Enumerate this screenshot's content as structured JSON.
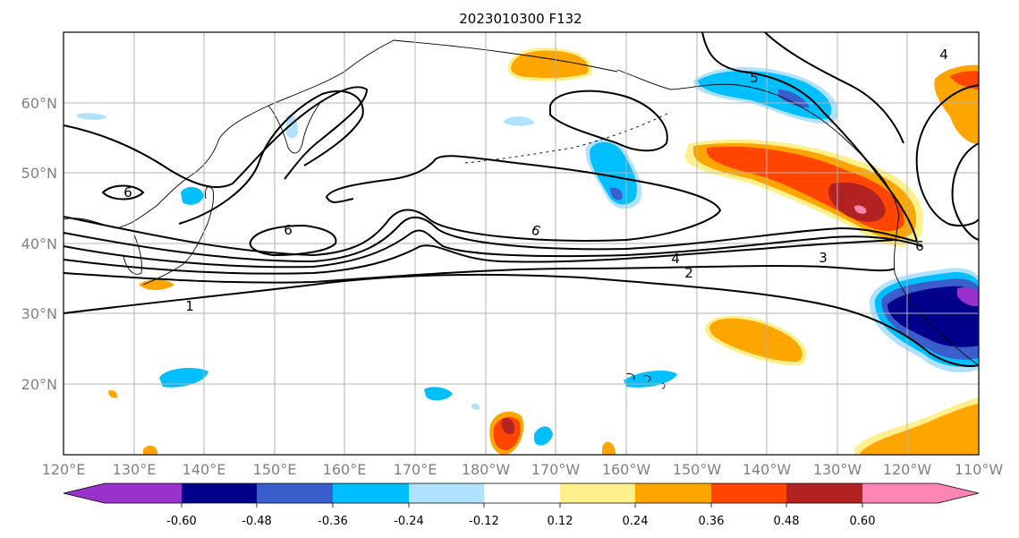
{
  "title": "2023010300 F132",
  "map": {
    "lon_ticks": [
      "120°E",
      "130°E",
      "140°E",
      "150°E",
      "160°E",
      "170°E",
      "180°W",
      "170°W",
      "160°W",
      "150°W",
      "140°W",
      "130°W",
      "120°W",
      "110°W"
    ],
    "lat_ticks": [
      "60°N",
      "50°N",
      "40°N",
      "30°N",
      "20°N"
    ],
    "contour_labels": [
      "6",
      "6",
      "6",
      "5",
      "4",
      "4",
      "3",
      "2",
      "1",
      "6"
    ]
  },
  "colorbar": {
    "colors": [
      "#9932cc",
      "#00008b",
      "#3a5fcd",
      "#00bfff",
      "#b0e2ff",
      "#ffffff",
      "#fff08c",
      "#ffa500",
      "#ff4500",
      "#b22222",
      "#ff86b4"
    ],
    "tick_labels": [
      "-0.60",
      "-0.48",
      "-0.36",
      "-0.24",
      "-0.12",
      "0.12",
      "0.24",
      "0.36",
      "0.48",
      "0.60"
    ]
  },
  "chart_data": {
    "type": "heatmap",
    "title": "2023010300 F132",
    "levels": [
      -0.6,
      -0.48,
      -0.36,
      -0.24,
      -0.12,
      0.12,
      0.24,
      0.36,
      0.48,
      0.6
    ],
    "contour_values": [
      1,
      2,
      3,
      4,
      5,
      6
    ]
  }
}
